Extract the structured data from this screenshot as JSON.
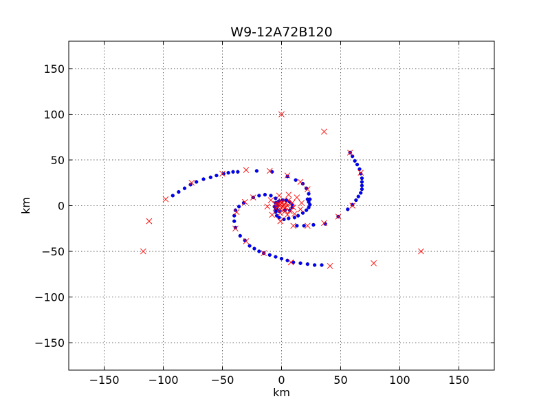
{
  "chart_data": {
    "type": "scatter",
    "title": "W9-12A72B120",
    "xlabel": "km",
    "ylabel": "km",
    "xlim": [
      -180,
      180
    ],
    "ylim": [
      -180,
      180
    ],
    "xticks": [
      -150,
      -100,
      -50,
      0,
      50,
      100,
      150
    ],
    "yticks": [
      -150,
      -100,
      -50,
      0,
      50,
      100,
      150
    ],
    "xtick_labels": [
      "−150",
      "−100",
      "−50",
      "0",
      "50",
      "100",
      "150"
    ],
    "ytick_labels": [
      "−150",
      "−100",
      "−50",
      "0",
      "50",
      "100",
      "150"
    ],
    "grid": true,
    "series": [
      {
        "marker": "dot",
        "color": "#0000ff",
        "points": [
          [
            -92,
            11
          ],
          [
            -87,
            15
          ],
          [
            -82,
            19
          ],
          [
            -77,
            23
          ],
          [
            -72,
            26
          ],
          [
            -66,
            29
          ],
          [
            -60,
            31
          ],
          [
            -55,
            33
          ],
          [
            -49,
            35
          ],
          [
            -45,
            36
          ],
          [
            -41,
            37
          ],
          [
            -37,
            37
          ],
          [
            -21,
            38
          ],
          [
            -8,
            37
          ],
          [
            -24,
            9
          ],
          [
            -19,
            11
          ],
          [
            -14,
            12
          ],
          [
            -9,
            11
          ],
          [
            -5,
            8
          ],
          [
            -3,
            4
          ],
          [
            -3,
            0
          ],
          [
            -4,
            -4
          ],
          [
            -5,
            -7
          ],
          [
            -4,
            -11
          ],
          [
            -2,
            -13
          ],
          [
            2,
            -15
          ],
          [
            6,
            -14
          ],
          [
            11,
            -13
          ],
          [
            14,
            -11
          ],
          [
            18,
            -8
          ],
          [
            21,
            -5
          ],
          [
            23,
            -2
          ],
          [
            24,
            1
          ],
          [
            23,
            4
          ],
          [
            22,
            7
          ],
          [
            3,
            -5
          ],
          [
            7,
            -5
          ],
          [
            9,
            -2
          ],
          [
            9,
            1
          ],
          [
            7,
            4
          ],
          [
            4,
            6
          ],
          [
            1,
            6
          ],
          [
            -2,
            5
          ],
          [
            -5,
            3
          ],
          [
            -6,
            -1
          ],
          [
            -5,
            -4
          ],
          [
            -2,
            -6
          ],
          [
            5,
            32
          ],
          [
            12,
            28
          ],
          [
            18,
            24
          ],
          [
            21,
            19
          ],
          [
            23,
            13
          ],
          [
            24,
            7
          ],
          [
            -32,
            3
          ],
          [
            -36,
            -1
          ],
          [
            -39,
            -5
          ],
          [
            -40,
            -11
          ],
          [
            -40,
            -17
          ],
          [
            -39,
            -24
          ],
          [
            -35,
            -33
          ],
          [
            -31,
            -38
          ],
          [
            -27,
            -44
          ],
          [
            -23,
            -47
          ],
          [
            -19,
            -50
          ],
          [
            -15,
            -52
          ],
          [
            -10,
            -54
          ],
          [
            -5,
            -56
          ],
          [
            0,
            -58
          ],
          [
            5,
            -60
          ],
          [
            10,
            -62
          ],
          [
            16,
            -63
          ],
          [
            22,
            -64
          ],
          [
            28,
            -65
          ],
          [
            34,
            -65
          ],
          [
            13,
            -22
          ],
          [
            19,
            -22
          ],
          [
            27,
            -21
          ],
          [
            37,
            -20
          ],
          [
            48,
            -12
          ],
          [
            56,
            -4
          ],
          [
            60,
            1
          ],
          [
            63,
            6
          ],
          [
            65,
            10
          ],
          [
            67,
            14
          ],
          [
            68,
            18
          ],
          [
            68,
            22
          ],
          [
            68,
            26
          ],
          [
            68,
            30
          ],
          [
            67,
            35
          ],
          [
            66,
            40
          ],
          [
            64,
            45
          ],
          [
            62,
            49
          ],
          [
            60,
            54
          ],
          [
            58,
            58
          ]
        ]
      },
      {
        "marker": "x",
        "color": "#ff0000",
        "points": [
          [
            0,
            100
          ],
          [
            36,
            81
          ],
          [
            58,
            58
          ],
          [
            67,
            36
          ],
          [
            60,
            0
          ],
          [
            48,
            -12
          ],
          [
            36,
            -19
          ],
          [
            22,
            -22
          ],
          [
            10,
            -22
          ],
          [
            -1,
            -17
          ],
          [
            -8,
            -10
          ],
          [
            -12,
            -1
          ],
          [
            -9,
            6
          ],
          [
            -2,
            11
          ],
          [
            6,
            12
          ],
          [
            13,
            9
          ],
          [
            17,
            3
          ],
          [
            16,
            -4
          ],
          [
            11,
            -9
          ],
          [
            5,
            -10
          ],
          [
            -1,
            -8
          ],
          [
            -5,
            -3
          ],
          [
            -5,
            2
          ],
          [
            0,
            5
          ],
          [
            6,
            6
          ],
          [
            9,
            3
          ],
          [
            10,
            -2
          ],
          [
            7,
            -6
          ],
          [
            3,
            -6
          ],
          [
            -1,
            -4
          ],
          [
            -2,
            0
          ],
          [
            0,
            3
          ],
          [
            4,
            3
          ],
          [
            5,
            0
          ],
          [
            3,
            -2
          ],
          [
            1,
            -1
          ],
          [
            -3,
            2
          ],
          [
            2,
            1
          ],
          [
            -1,
            1
          ],
          [
            22,
            18
          ],
          [
            16,
            26
          ],
          [
            5,
            33
          ],
          [
            -10,
            38
          ],
          [
            -30,
            39
          ],
          [
            -50,
            35
          ],
          [
            -76,
            25
          ],
          [
            -98,
            7
          ],
          [
            -112,
            -17
          ],
          [
            -117,
            -50
          ],
          [
            -24,
            9
          ],
          [
            -31,
            4
          ],
          [
            -38,
            -7
          ],
          [
            -39,
            -25
          ],
          [
            -30,
            -39
          ],
          [
            -15,
            -52
          ],
          [
            8,
            -62
          ],
          [
            41,
            -66
          ],
          [
            78,
            -63
          ],
          [
            118,
            -50
          ]
        ]
      }
    ]
  }
}
